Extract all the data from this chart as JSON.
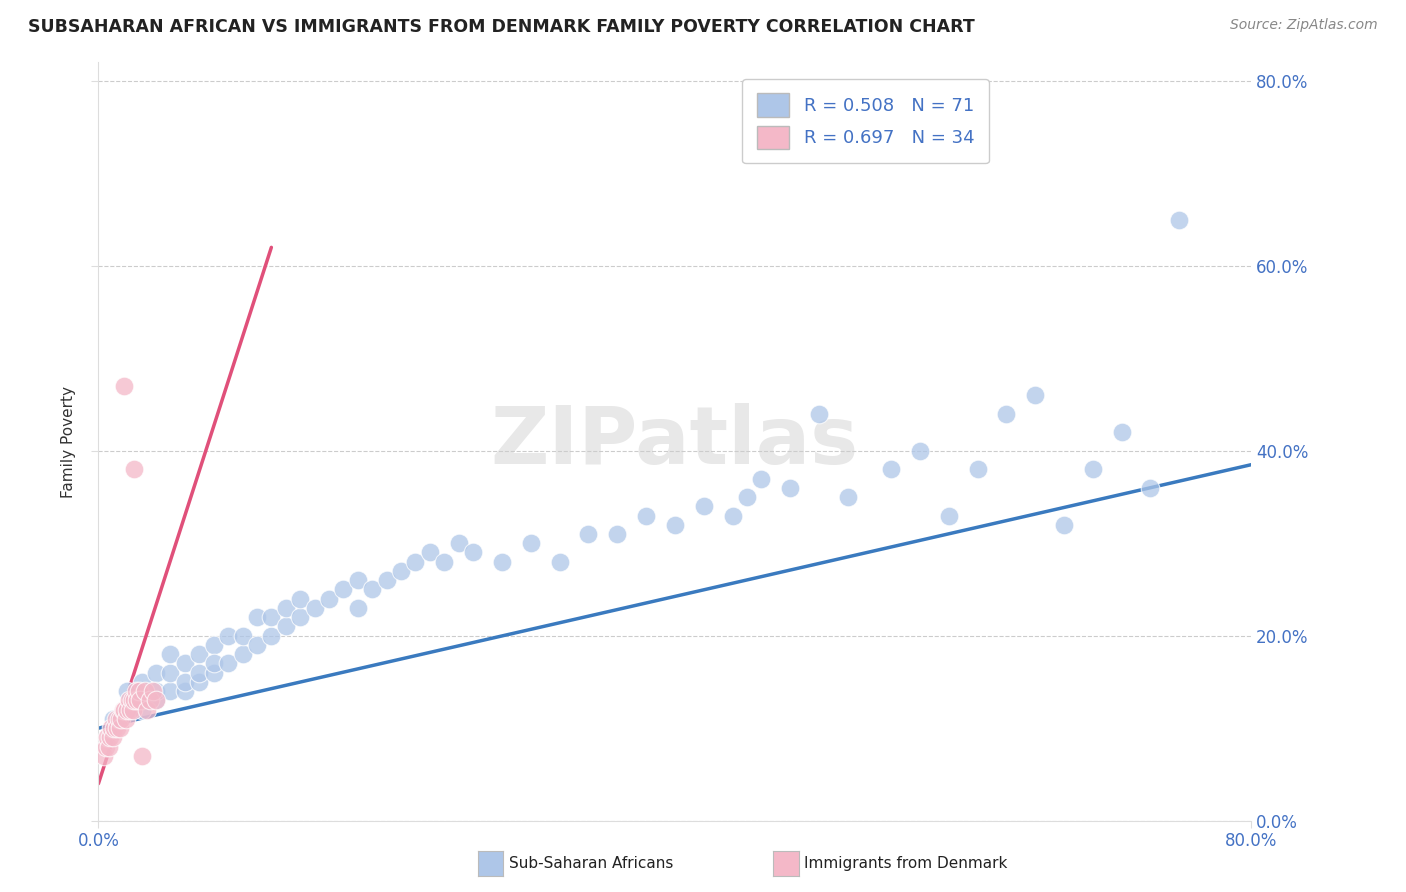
{
  "title": "SUBSAHARAN AFRICAN VS IMMIGRANTS FROM DENMARK FAMILY POVERTY CORRELATION CHART",
  "source": "Source: ZipAtlas.com",
  "ylabel": "Family Poverty",
  "legend1_label": "R = 0.508   N = 71",
  "legend2_label": "R = 0.697   N = 34",
  "blue_color": "#aec6e8",
  "pink_color": "#f4b8c8",
  "blue_line_color": "#3a7abf",
  "pink_line_color": "#e0507a",
  "watermark": "ZIPatlas",
  "xmin": 0.0,
  "xmax": 0.8,
  "ymin": 0.0,
  "ymax": 0.82,
  "blue_line_x0": 0.0,
  "blue_line_y0": 0.1,
  "blue_line_x1": 0.8,
  "blue_line_y1": 0.385,
  "pink_line_x0": 0.0,
  "pink_line_y0": 0.04,
  "pink_line_x1": 0.12,
  "pink_line_y1": 0.62,
  "blue_scatter_x": [
    0.01,
    0.02,
    0.02,
    0.03,
    0.03,
    0.03,
    0.04,
    0.04,
    0.04,
    0.05,
    0.05,
    0.05,
    0.06,
    0.06,
    0.06,
    0.07,
    0.07,
    0.07,
    0.08,
    0.08,
    0.08,
    0.09,
    0.09,
    0.1,
    0.1,
    0.11,
    0.11,
    0.12,
    0.12,
    0.13,
    0.13,
    0.14,
    0.14,
    0.15,
    0.16,
    0.17,
    0.18,
    0.18,
    0.19,
    0.2,
    0.21,
    0.22,
    0.23,
    0.24,
    0.25,
    0.26,
    0.28,
    0.3,
    0.32,
    0.34,
    0.36,
    0.38,
    0.4,
    0.42,
    0.44,
    0.45,
    0.46,
    0.48,
    0.5,
    0.52,
    0.55,
    0.57,
    0.59,
    0.61,
    0.63,
    0.65,
    0.67,
    0.69,
    0.71,
    0.73,
    0.75
  ],
  "blue_scatter_y": [
    0.11,
    0.12,
    0.14,
    0.12,
    0.15,
    0.13,
    0.13,
    0.16,
    0.14,
    0.14,
    0.16,
    0.18,
    0.14,
    0.17,
    0.15,
    0.15,
    0.18,
    0.16,
    0.16,
    0.19,
    0.17,
    0.17,
    0.2,
    0.18,
    0.2,
    0.19,
    0.22,
    0.2,
    0.22,
    0.21,
    0.23,
    0.22,
    0.24,
    0.23,
    0.24,
    0.25,
    0.23,
    0.26,
    0.25,
    0.26,
    0.27,
    0.28,
    0.29,
    0.28,
    0.3,
    0.29,
    0.28,
    0.3,
    0.28,
    0.31,
    0.31,
    0.33,
    0.32,
    0.34,
    0.33,
    0.35,
    0.37,
    0.36,
    0.44,
    0.35,
    0.38,
    0.4,
    0.33,
    0.38,
    0.44,
    0.46,
    0.32,
    0.38,
    0.42,
    0.36,
    0.65
  ],
  "pink_scatter_x": [
    0.004,
    0.005,
    0.006,
    0.007,
    0.008,
    0.009,
    0.01,
    0.011,
    0.012,
    0.013,
    0.014,
    0.015,
    0.016,
    0.017,
    0.018,
    0.019,
    0.02,
    0.021,
    0.022,
    0.023,
    0.024,
    0.025,
    0.026,
    0.027,
    0.028,
    0.029,
    0.03,
    0.032,
    0.034,
    0.036,
    0.038,
    0.04,
    0.018,
    0.025
  ],
  "pink_scatter_y": [
    0.07,
    0.08,
    0.09,
    0.08,
    0.09,
    0.1,
    0.09,
    0.1,
    0.11,
    0.1,
    0.11,
    0.1,
    0.11,
    0.12,
    0.12,
    0.11,
    0.12,
    0.13,
    0.12,
    0.13,
    0.12,
    0.13,
    0.14,
    0.13,
    0.14,
    0.13,
    0.07,
    0.14,
    0.12,
    0.13,
    0.14,
    0.13,
    0.47,
    0.38
  ]
}
